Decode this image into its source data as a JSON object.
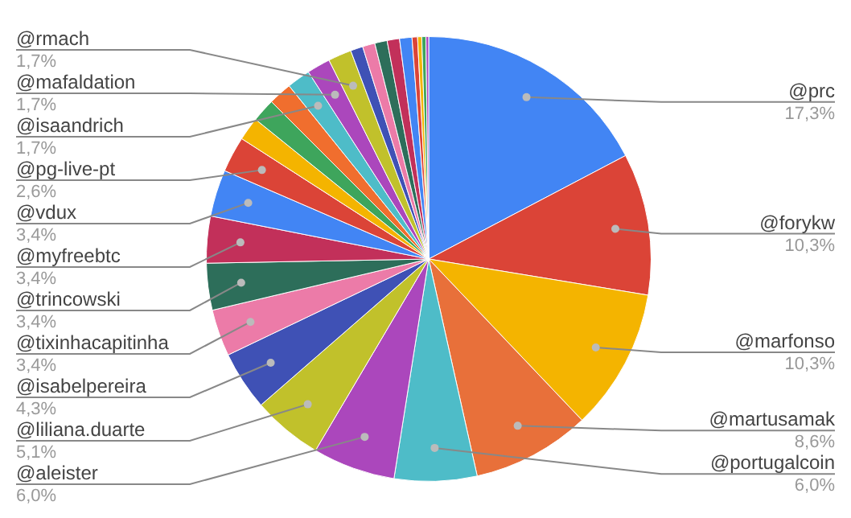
{
  "chart_data": {
    "type": "pie",
    "legend": false,
    "categories": [
      "@prc",
      "@forykw",
      "@marfonso",
      "@martusamak",
      "@portugalcoin",
      "@aleister",
      "@liliana.duarte",
      "@isabelpereira",
      "@tixinhacapitinha",
      "@trincowski",
      "@myfreebtc",
      "@vdux",
      "@pg-live-pt",
      null,
      null,
      null,
      "@isaandrich",
      "@mafaldation",
      "@rmach",
      null,
      null,
      null,
      null,
      null,
      null,
      null,
      null,
      null
    ],
    "values": [
      17.3,
      10.3,
      10.3,
      8.6,
      6.0,
      6.0,
      5.1,
      4.3,
      3.4,
      3.4,
      3.4,
      3.4,
      2.6,
      1.7,
      1.7,
      1.7,
      1.7,
      1.7,
      1.7,
      0.9,
      0.9,
      0.9,
      0.9,
      0.9,
      0.4,
      0.3,
      0.3,
      0.2
    ],
    "value_labels": [
      "17,3%",
      "10,3%",
      "10,3%",
      "8,6%",
      "6,0%",
      "6,0%",
      "5,1%",
      "4,3%",
      "3,4%",
      "3,4%",
      "3,4%",
      "3,4%",
      "2,6%",
      null,
      null,
      null,
      "1,7%",
      "1,7%",
      "1,7%",
      null,
      null,
      null,
      null,
      null,
      null,
      null,
      null,
      null
    ],
    "colors": [
      "#4285f4",
      "#db4437",
      "#f4b400",
      "#e8703a",
      "#4ebcc8",
      "#ab47bc",
      "#c1c12b",
      "#3f51b5",
      "#ec7ba8",
      "#2d6e5a",
      "#c2305a",
      "#4285f4",
      "#db4437",
      "#f4b400",
      "#3ea55c",
      "#f06e2e",
      "#4ebcc8",
      "#ab47bc",
      "#c1c12b",
      "#3f51b5",
      "#ec7ba8",
      "#2d6e5a",
      "#c2305a",
      "#4285f4",
      "#db4437",
      "#f4b400",
      "#3ea55c",
      "#ab47bc"
    ]
  }
}
